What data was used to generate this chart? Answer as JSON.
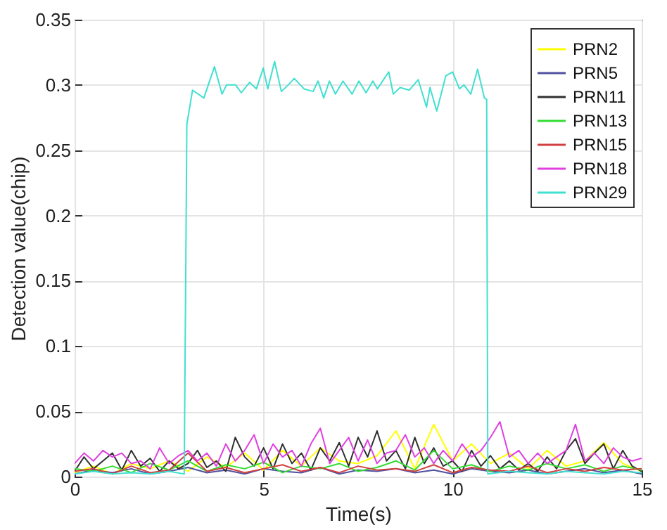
{
  "chart_data": {
    "type": "line",
    "xlabel": "Time(s)",
    "ylabel": "Detection value(chip)",
    "xlim": [
      0,
      15
    ],
    "xticks": [
      0,
      5,
      10,
      15
    ],
    "ylim": [
      0,
      0.35
    ],
    "yticks": [
      0,
      0.05,
      0.1,
      0.15,
      0.2,
      0.25,
      0.3,
      0.35
    ],
    "grid": true,
    "legend": "top right",
    "x": [
      0,
      0.5,
      1,
      1.5,
      2,
      2.5,
      3,
      3.5,
      4,
      4.5,
      5,
      5.5,
      6,
      6.5,
      7,
      7.5,
      8,
      8.5,
      9,
      9.5,
      10,
      10.5,
      11,
      11.5,
      12,
      12.5,
      13,
      13.5,
      14,
      14.5,
      15
    ],
    "series": [
      {
        "name": "PRN2",
        "color": "#ffff00",
        "values": [
          0.003,
          0.008,
          0.002,
          0.01,
          0.006,
          0.012,
          0.004,
          0.015,
          0.007,
          0.018,
          0.005,
          0.02,
          0.008,
          0.022,
          0.012,
          0.01,
          0.016,
          0.035,
          0.006,
          0.04,
          0.012,
          0.025,
          0.01,
          0.018,
          0.006,
          0.02,
          0.008,
          0.012,
          0.026,
          0.01,
          0.004
        ]
      },
      {
        "name": "PRN5",
        "color": "#5050a0",
        "values": [
          0.002,
          0.005,
          0.003,
          0.006,
          0.002,
          0.004,
          0.007,
          0.003,
          0.005,
          0.002,
          0.006,
          0.004,
          0.003,
          0.007,
          0.002,
          0.005,
          0.004,
          0.006,
          0.003,
          0.005,
          0.002,
          0.006,
          0.004,
          0.003,
          0.005,
          0.002,
          0.004,
          0.006,
          0.003,
          0.005,
          0.002
        ]
      },
      {
        "name": "PRN11",
        "color": "#303030",
        "x": [
          0,
          0.25,
          0.5,
          0.75,
          1,
          1.25,
          1.5,
          1.75,
          2,
          2.25,
          2.5,
          2.75,
          3,
          3.25,
          3.5,
          3.75,
          4,
          4.25,
          4.5,
          4.75,
          5,
          5.25,
          5.5,
          5.75,
          6,
          6.25,
          6.5,
          6.75,
          7,
          7.25,
          7.5,
          7.75,
          8,
          8.25,
          8.5,
          8.75,
          9,
          9.25,
          9.5,
          9.75,
          10,
          10.25,
          10.5,
          10.75,
          11,
          11.25,
          11.5,
          11.75,
          12,
          12.25,
          12.5,
          12.75,
          13,
          13.25,
          13.5,
          13.75,
          14,
          14.25,
          14.5,
          14.75,
          15
        ],
        "values": [
          0.004,
          0.015,
          0.006,
          0.012,
          0.018,
          0.005,
          0.02,
          0.008,
          0.014,
          0.004,
          0.012,
          0.006,
          0.01,
          0.02,
          0.007,
          0.012,
          0.004,
          0.03,
          0.015,
          0.008,
          0.022,
          0.006,
          0.025,
          0.01,
          0.018,
          0.005,
          0.022,
          0.012,
          0.026,
          0.008,
          0.03,
          0.015,
          0.035,
          0.012,
          0.02,
          0.006,
          0.03,
          0.01,
          0.022,
          0.008,
          0.012,
          0.004,
          0.02,
          0.008,
          0.016,
          0.006,
          0.012,
          0.005,
          0.01,
          0.004,
          0.015,
          0.006,
          0.02,
          0.029,
          0.01,
          0.018,
          0.025,
          0.006,
          0.02,
          0.008,
          0.004
        ]
      },
      {
        "name": "PRN13",
        "color": "#33dd33",
        "values": [
          0.006,
          0.004,
          0.008,
          0.003,
          0.01,
          0.005,
          0.012,
          0.004,
          0.009,
          0.006,
          0.011,
          0.003,
          0.008,
          0.006,
          0.01,
          0.004,
          0.007,
          0.012,
          0.005,
          0.02,
          0.006,
          0.009,
          0.004,
          0.008,
          0.005,
          0.01,
          0.006,
          0.009,
          0.004,
          0.008,
          0.005
        ]
      },
      {
        "name": "PRN15",
        "color": "#d04040",
        "values": [
          0.004,
          0.006,
          0.002,
          0.008,
          0.003,
          0.005,
          0.018,
          0.004,
          0.007,
          0.003,
          0.006,
          0.009,
          0.004,
          0.007,
          0.003,
          0.008,
          0.005,
          0.006,
          0.004,
          0.009,
          0.003,
          0.007,
          0.005,
          0.004,
          0.008,
          0.003,
          0.006,
          0.004,
          0.007,
          0.005,
          0.006
        ]
      },
      {
        "name": "PRN18",
        "color": "#e040e0",
        "x": [
          0,
          0.25,
          0.5,
          0.75,
          1,
          1.25,
          1.5,
          1.75,
          2,
          2.25,
          2.5,
          2.75,
          3,
          3.25,
          3.5,
          3.75,
          4,
          4.25,
          4.5,
          4.75,
          5,
          5.25,
          5.5,
          5.75,
          6,
          6.25,
          6.5,
          6.75,
          7,
          7.25,
          7.5,
          7.75,
          8,
          8.25,
          8.5,
          8.75,
          9,
          9.25,
          9.5,
          9.75,
          10,
          10.25,
          10.5,
          10.75,
          11,
          11.25,
          11.5,
          11.75,
          12,
          12.25,
          12.5,
          12.75,
          13,
          13.25,
          13.5,
          13.75,
          14,
          14.25,
          14.5,
          14.75,
          15
        ],
        "values": [
          0.01,
          0.018,
          0.012,
          0.02,
          0.015,
          0.018,
          0.01,
          0.012,
          0.006,
          0.022,
          0.01,
          0.016,
          0.02,
          0.012,
          0.018,
          0.008,
          0.025,
          0.012,
          0.02,
          0.032,
          0.01,
          0.025,
          0.015,
          0.02,
          0.008,
          0.025,
          0.037,
          0.01,
          0.02,
          0.03,
          0.012,
          0.028,
          0.01,
          0.018,
          0.02,
          0.032,
          0.015,
          0.022,
          0.01,
          0.02,
          0.012,
          0.025,
          0.015,
          0.02,
          0.03,
          0.042,
          0.015,
          0.02,
          0.01,
          0.018,
          0.01,
          0.015,
          0.02,
          0.04,
          0.012,
          0.018,
          0.01,
          0.022,
          0.015,
          0.012,
          0.014
        ]
      },
      {
        "name": "PRN29",
        "color": "#40e0d0",
        "x": [
          0,
          0.5,
          1,
          1.5,
          2,
          2.5,
          2.9,
          2.97,
          3.12,
          3.42,
          3.7,
          3.9,
          4.02,
          4.26,
          4.41,
          4.63,
          4.81,
          4.99,
          5.11,
          5.29,
          5.47,
          5.65,
          5.81,
          6.07,
          6.31,
          6.44,
          6.59,
          6.74,
          6.9,
          7.1,
          7.34,
          7.52,
          7.71,
          7.89,
          8.01,
          8.31,
          8.43,
          8.61,
          8.85,
          9.09,
          9.31,
          9.4,
          9.58,
          9.82,
          10,
          10.18,
          10.3,
          10.48,
          10.66,
          10.84,
          10.9,
          10.93,
          11.5,
          12,
          12.5,
          13,
          13.5,
          14,
          14.5,
          15
        ],
        "values": [
          0.002,
          0.004,
          0.002,
          0.003,
          0.002,
          0.004,
          0.002,
          0.27,
          0.296,
          0.29,
          0.314,
          0.293,
          0.3,
          0.3,
          0.294,
          0.302,
          0.297,
          0.313,
          0.297,
          0.318,
          0.295,
          0.3,
          0.305,
          0.297,
          0.295,
          0.303,
          0.29,
          0.303,
          0.293,
          0.303,
          0.293,
          0.303,
          0.294,
          0.303,
          0.297,
          0.31,
          0.293,
          0.298,
          0.296,
          0.304,
          0.283,
          0.298,
          0.28,
          0.307,
          0.31,
          0.297,
          0.3,
          0.293,
          0.312,
          0.29,
          0.289,
          0.002,
          0.004,
          0.003,
          0.002,
          0.004,
          0.003,
          0.002,
          0.004,
          0.003
        ]
      }
    ]
  }
}
